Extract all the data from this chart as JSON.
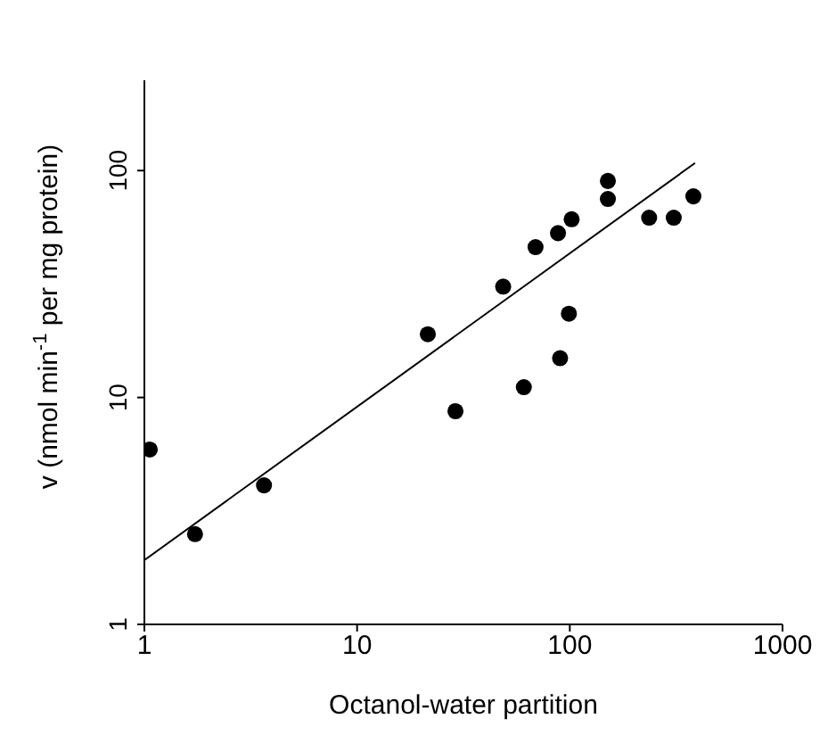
{
  "chart_data": {
    "type": "scatter",
    "xlabel": "Octanol-water partition",
    "ylabel": "v (nmol min$^{-1}$ per mg protein)",
    "log": "xy",
    "xlim": [
      1,
      1000
    ],
    "ylim": [
      1,
      250
    ],
    "xticks": [
      1,
      10,
      100,
      1000
    ],
    "yticks": [
      1,
      10,
      100
    ],
    "marker": "circle",
    "series": [
      {
        "color": "#000000",
        "x": [
          1.06,
          1.73,
          3.65,
          21.5,
          29,
          48.6,
          60.8,
          69,
          88,
          90,
          99,
          102,
          151,
          151,
          236,
          308,
          381
        ],
        "values": [
          5.9,
          2.5,
          4.1,
          19,
          8.7,
          30.8,
          11.1,
          46,
          53,
          14.9,
          23.4,
          61,
          90,
          75,
          62,
          62,
          77
        ]
      },
      {
        "type": "line",
        "color": "#000000",
        "line_style": "solid",
        "marker": "none",
        "x": [
          1,
          388
        ],
        "values": [
          1.92,
          108
        ]
      }
    ]
  }
}
